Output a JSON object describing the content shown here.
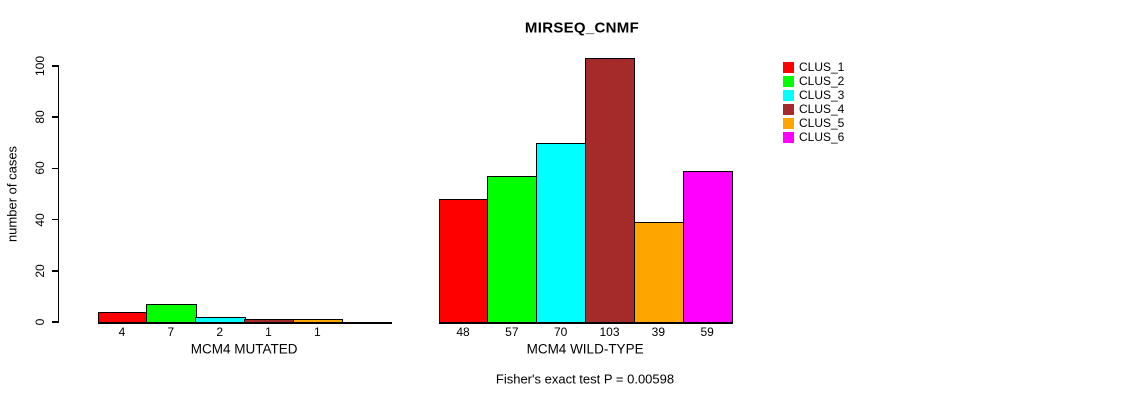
{
  "chart_data": {
    "type": "bar",
    "title": "MIRSEQ_CNMF",
    "ylabel": "number of cases",
    "annotation": "Fisher's exact test P = 0.00598",
    "categories": [
      "MCM4 MUTATED",
      "MCM4 WILD-TYPE"
    ],
    "yticks": [
      "0",
      "20",
      "40",
      "60",
      "80",
      "100"
    ],
    "ylim": [
      0,
      100
    ],
    "grid": false,
    "legend_position": "right-outside",
    "series": [
      {
        "name": "CLUS_1",
        "color": "#ff0000",
        "values": [
          4,
          48
        ]
      },
      {
        "name": "CLUS_2",
        "color": "#00ff00",
        "values": [
          7,
          57
        ]
      },
      {
        "name": "CLUS_3",
        "color": "#00ffff",
        "values": [
          2,
          70
        ]
      },
      {
        "name": "CLUS_4",
        "color": "#a52a2a",
        "values": [
          1,
          103
        ]
      },
      {
        "name": "CLUS_5",
        "color": "#ffa500",
        "values": [
          1,
          39
        ]
      },
      {
        "name": "CLUS_6",
        "color": "#ff00ff",
        "values": [
          0,
          59
        ]
      }
    ],
    "bar_value_labels": [
      [
        "4",
        "7",
        "2",
        "1",
        "1",
        ""
      ],
      [
        "48",
        "57",
        "70",
        "103",
        "39",
        "59"
      ]
    ]
  }
}
